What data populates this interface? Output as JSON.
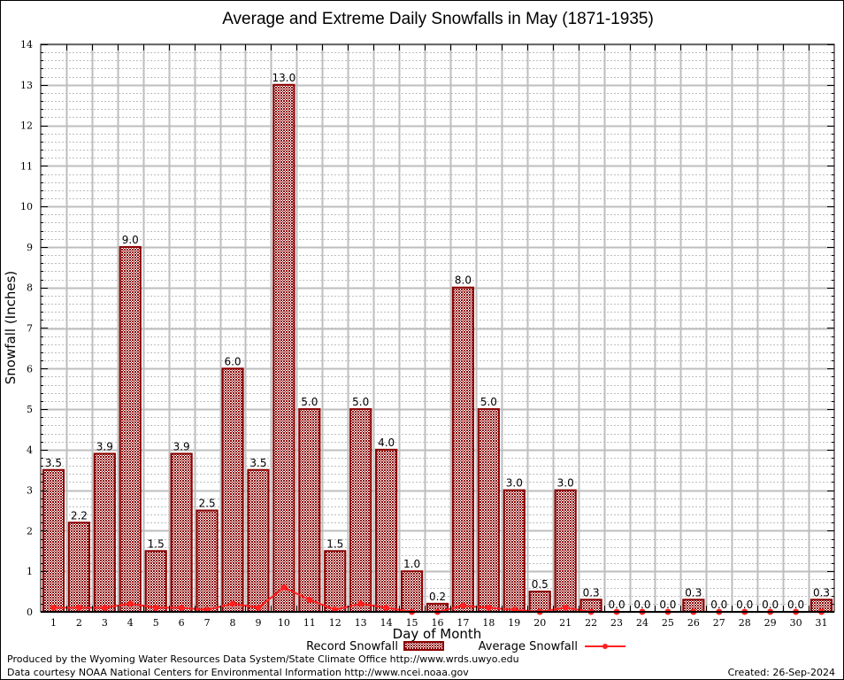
{
  "chart_data": {
    "type": "bar",
    "title": "Average and Extreme Daily Snowfalls in May (1871-1935)",
    "xlabel": "Day of Month",
    "ylabel": "Snowfall (Inches)",
    "ylim": [
      0,
      14
    ],
    "yticks": [
      0,
      1,
      2,
      3,
      4,
      5,
      6,
      7,
      8,
      9,
      10,
      11,
      12,
      13,
      14
    ],
    "grid": true,
    "legend_position": "bottom-center",
    "categories": [
      "1",
      "2",
      "3",
      "4",
      "5",
      "6",
      "7",
      "8",
      "9",
      "10",
      "11",
      "12",
      "13",
      "14",
      "15",
      "16",
      "17",
      "18",
      "19",
      "20",
      "21",
      "22",
      "23",
      "24",
      "25",
      "26",
      "27",
      "28",
      "29",
      "30",
      "31"
    ],
    "series": [
      {
        "name": "Record Snowfall",
        "type": "bar",
        "color": "#8b0000",
        "values": [
          3.5,
          2.2,
          3.9,
          9.0,
          1.5,
          3.9,
          2.5,
          6.0,
          3.5,
          13.0,
          5.0,
          1.5,
          5.0,
          4.0,
          1.0,
          0.2,
          8.0,
          5.0,
          3.0,
          0.5,
          3.0,
          0.3,
          0.0,
          0.0,
          0.0,
          0.3,
          0.0,
          0.0,
          0.0,
          0.0,
          0.3
        ],
        "labels": [
          "3.5",
          "2.2",
          "3.9",
          "9.0",
          "1.5",
          "3.9",
          "2.5",
          "6.0",
          "3.5",
          "13.0",
          "5.0",
          "1.5",
          "5.0",
          "4.0",
          "1.0",
          "0.2",
          "8.0",
          "5.0",
          "3.0",
          "0.5",
          "3.0",
          "0.3",
          "0.0",
          "0.0",
          "0.0",
          "0.3",
          "0.0",
          "0.0",
          "0.0",
          "0.0",
          "0.3"
        ]
      },
      {
        "name": "Average Snowfall",
        "type": "line",
        "color": "#ff2020",
        "values": [
          0.1,
          0.1,
          0.1,
          0.2,
          0.1,
          0.1,
          0.05,
          0.2,
          0.1,
          0.6,
          0.3,
          0.05,
          0.2,
          0.1,
          0.0,
          0.0,
          0.15,
          0.1,
          0.05,
          0.0,
          0.1,
          0.0,
          0.0,
          0.0,
          0.0,
          0.0,
          0.0,
          0.0,
          0.0,
          0.0,
          0.0
        ]
      }
    ]
  },
  "footer": {
    "produced_by": "Produced by the Wyoming Water Resources Data System/State Climate Office http://www.wrds.uwyo.edu",
    "data_courtesy": "Data courtesy NOAA National Centers for Environmental Information http://www.ncei.noaa.gov",
    "created": "Created: 26-Sep-2024"
  }
}
